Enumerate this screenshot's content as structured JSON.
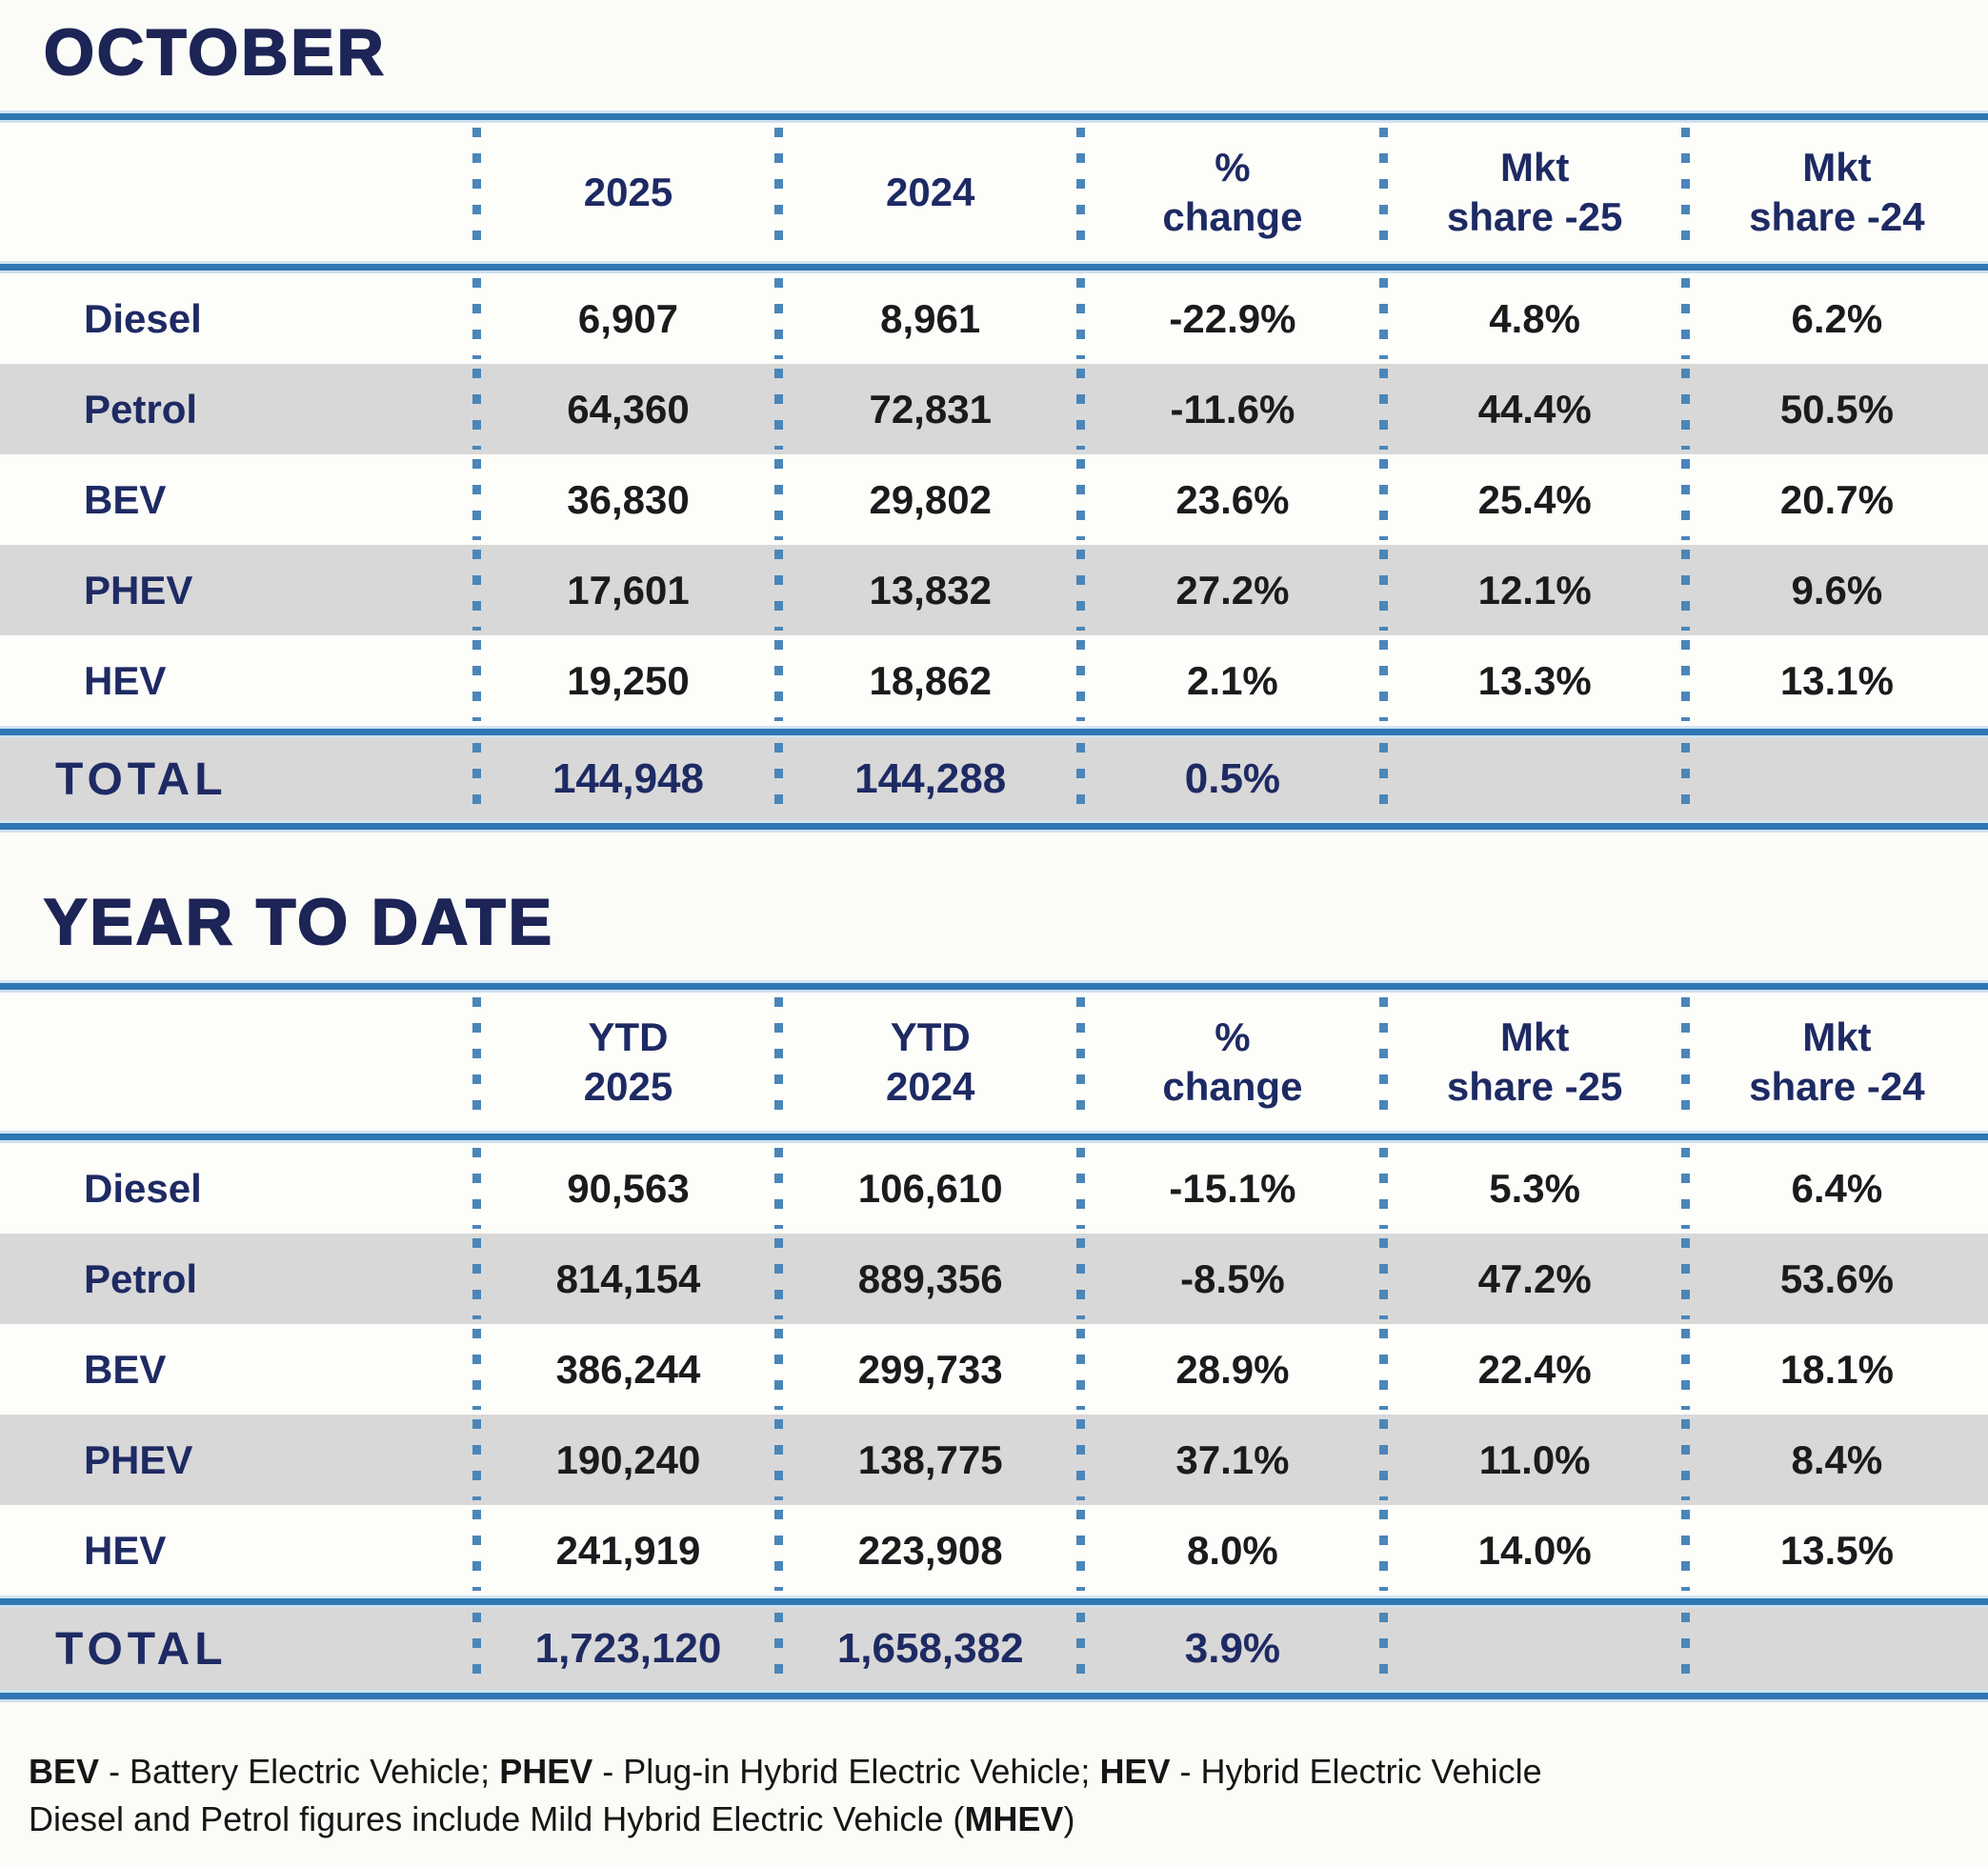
{
  "colors": {
    "title_navy": "#1d2456",
    "header_navy": "#1e2a63",
    "data_text": "#1b1b1d",
    "rule_blue": "#2f76b3",
    "rule_halo": "#d2e4f2",
    "dot_blue": "#4a86b8",
    "stripe_gray": "#d8d8d8",
    "background": "#fbfbf7"
  },
  "chart_data": [
    {
      "type": "table",
      "title": "OCTOBER",
      "columns": [
        "",
        "2025",
        "2024",
        "% change",
        "Mkt share -25",
        "Mkt share -24"
      ],
      "header_lines": [
        [
          "",
          ""
        ],
        [
          "2025",
          ""
        ],
        [
          "2024",
          ""
        ],
        [
          "%",
          "change"
        ],
        [
          "Mkt",
          "share -25"
        ],
        [
          "Mkt",
          "share -24"
        ]
      ],
      "rows": [
        {
          "label": "Diesel",
          "values": [
            "6,907",
            "8,961",
            "-22.9%",
            "4.8%",
            "6.2%"
          ]
        },
        {
          "label": "Petrol",
          "values": [
            "64,360",
            "72,831",
            "-11.6%",
            "44.4%",
            "50.5%"
          ]
        },
        {
          "label": "BEV",
          "values": [
            "36,830",
            "29,802",
            "23.6%",
            "25.4%",
            "20.7%"
          ]
        },
        {
          "label": "PHEV",
          "values": [
            "17,601",
            "13,832",
            "27.2%",
            "12.1%",
            "9.6%"
          ]
        },
        {
          "label": "HEV",
          "values": [
            "19,250",
            "18,862",
            "2.1%",
            "13.3%",
            "13.1%"
          ]
        }
      ],
      "total": {
        "label": "TOTAL",
        "values": [
          "144,948",
          "144,288",
          "0.5%",
          "",
          ""
        ]
      }
    },
    {
      "type": "table",
      "title": "YEAR TO DATE",
      "columns": [
        "",
        "YTD 2025",
        "YTD 2024",
        "% change",
        "Mkt share -25",
        "Mkt share -24"
      ],
      "header_lines": [
        [
          "",
          ""
        ],
        [
          "YTD",
          "2025"
        ],
        [
          "YTD",
          "2024"
        ],
        [
          "%",
          "change"
        ],
        [
          "Mkt",
          "share -25"
        ],
        [
          "Mkt",
          "share -24"
        ]
      ],
      "rows": [
        {
          "label": "Diesel",
          "values": [
            "90,563",
            "106,610",
            "-15.1%",
            "5.3%",
            "6.4%"
          ]
        },
        {
          "label": "Petrol",
          "values": [
            "814,154",
            "889,356",
            "-8.5%",
            "47.2%",
            "53.6%"
          ]
        },
        {
          "label": "BEV",
          "values": [
            "386,244",
            "299,733",
            "28.9%",
            "22.4%",
            "18.1%"
          ]
        },
        {
          "label": "PHEV",
          "values": [
            "190,240",
            "138,775",
            "37.1%",
            "11.0%",
            "8.4%"
          ]
        },
        {
          "label": "HEV",
          "values": [
            "241,919",
            "223,908",
            "8.0%",
            "14.0%",
            "13.5%"
          ]
        }
      ],
      "total": {
        "label": "TOTAL",
        "values": [
          "1,723,120",
          "1,658,382",
          "3.9%",
          "",
          ""
        ]
      }
    }
  ],
  "footnote": {
    "line1": [
      {
        "text": "BEV",
        "bold": true
      },
      {
        "text": " - Battery Electric Vehicle; ",
        "bold": false
      },
      {
        "text": "PHEV",
        "bold": true
      },
      {
        "text": " - Plug-in Hybrid Electric Vehicle; ",
        "bold": false
      },
      {
        "text": "HEV",
        "bold": true
      },
      {
        "text": " - Hybrid Electric Vehicle",
        "bold": false
      }
    ],
    "line2": [
      {
        "text": "Diesel and Petrol figures include Mild Hybrid Electric Vehicle (",
        "bold": false
      },
      {
        "text": "MHEV",
        "bold": true
      },
      {
        "text": ")",
        "bold": false
      }
    ]
  }
}
